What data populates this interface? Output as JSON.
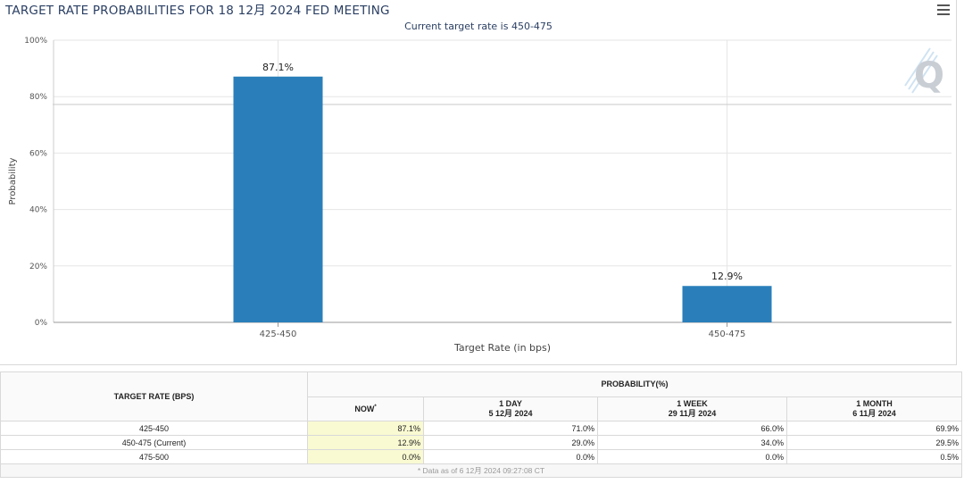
{
  "title": "TARGET RATE PROBABILITIES FOR 18 12月 2024 FED MEETING",
  "subtitle": "Current target rate is 450-475",
  "chart_data": {
    "type": "bar",
    "title": "TARGET RATE PROBABILITIES FOR 18 12月 2024 FED MEETING",
    "subtitle": "Current target rate is 450-475",
    "categories": [
      "425-450",
      "450-475"
    ],
    "values": [
      87.1,
      12.9
    ],
    "value_labels": [
      "87.1%",
      "12.9%"
    ],
    "xlabel": "Target Rate (in bps)",
    "ylabel": "Probability",
    "ylim": [
      0,
      100
    ],
    "yticks": [
      "0%",
      "20%",
      "40%",
      "60%",
      "80%",
      "100%"
    ],
    "grid": true,
    "bar_color": "#2a7fba"
  },
  "table": {
    "col_rate": "TARGET RATE (BPS)",
    "col_prob": "PROBABILITY(%)",
    "sub_now": "NOW",
    "sub_now_mark": "*",
    "sub_1day": "1 DAY",
    "sub_1day_date": "5 12月 2024",
    "sub_1week": "1 WEEK",
    "sub_1week_date": "29 11月 2024",
    "sub_1month": "1 MONTH",
    "sub_1month_date": "6 11月 2024",
    "rows": [
      {
        "rate": "425-450",
        "now": "87.1%",
        "day": "71.0%",
        "week": "66.0%",
        "month": "69.9%"
      },
      {
        "rate": "450-475 (Current)",
        "now": "12.9%",
        "day": "29.0%",
        "week": "34.0%",
        "month": "29.5%"
      },
      {
        "rate": "475-500",
        "now": "0.0%",
        "day": "0.0%",
        "week": "0.0%",
        "month": "0.5%"
      }
    ],
    "footnote": "* Data as of 6 12月 2024 09:27:08 CT"
  },
  "icons": {
    "menu": "hamburger-menu-icon",
    "watermark": "q-logo-icon"
  }
}
